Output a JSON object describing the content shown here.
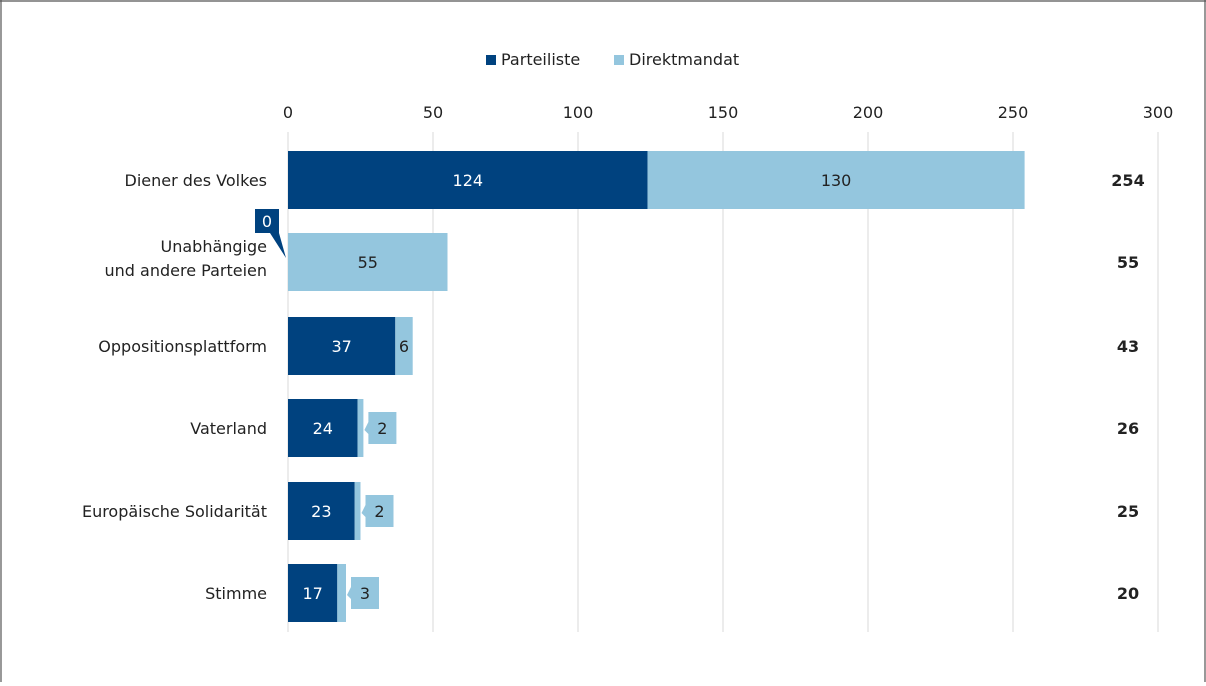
{
  "chart_data": {
    "type": "bar",
    "orientation": "horizontal",
    "stacked": true,
    "categories": [
      "Diener des Volkes",
      [
        "Unabhängige",
        "und andere Parteien"
      ],
      "Oppositionsplattform",
      "Vaterland",
      "Europäische Solidarität",
      "Stimme"
    ],
    "series": [
      {
        "name": "Parteiliste",
        "color": "#00427f",
        "values": [
          124,
          0,
          37,
          24,
          23,
          17
        ]
      },
      {
        "name": "Direktmandat",
        "color": "#94c6de",
        "values": [
          130,
          55,
          6,
          2,
          2,
          3
        ]
      }
    ],
    "totals": [
      254,
      55,
      43,
      26,
      25,
      20
    ],
    "xlim": [
      0,
      300
    ],
    "xticks": [
      0,
      50,
      100,
      150,
      200,
      250,
      300
    ],
    "grid": true,
    "legend_position": "top-center",
    "title": "",
    "xlabel": "",
    "ylabel": ""
  }
}
